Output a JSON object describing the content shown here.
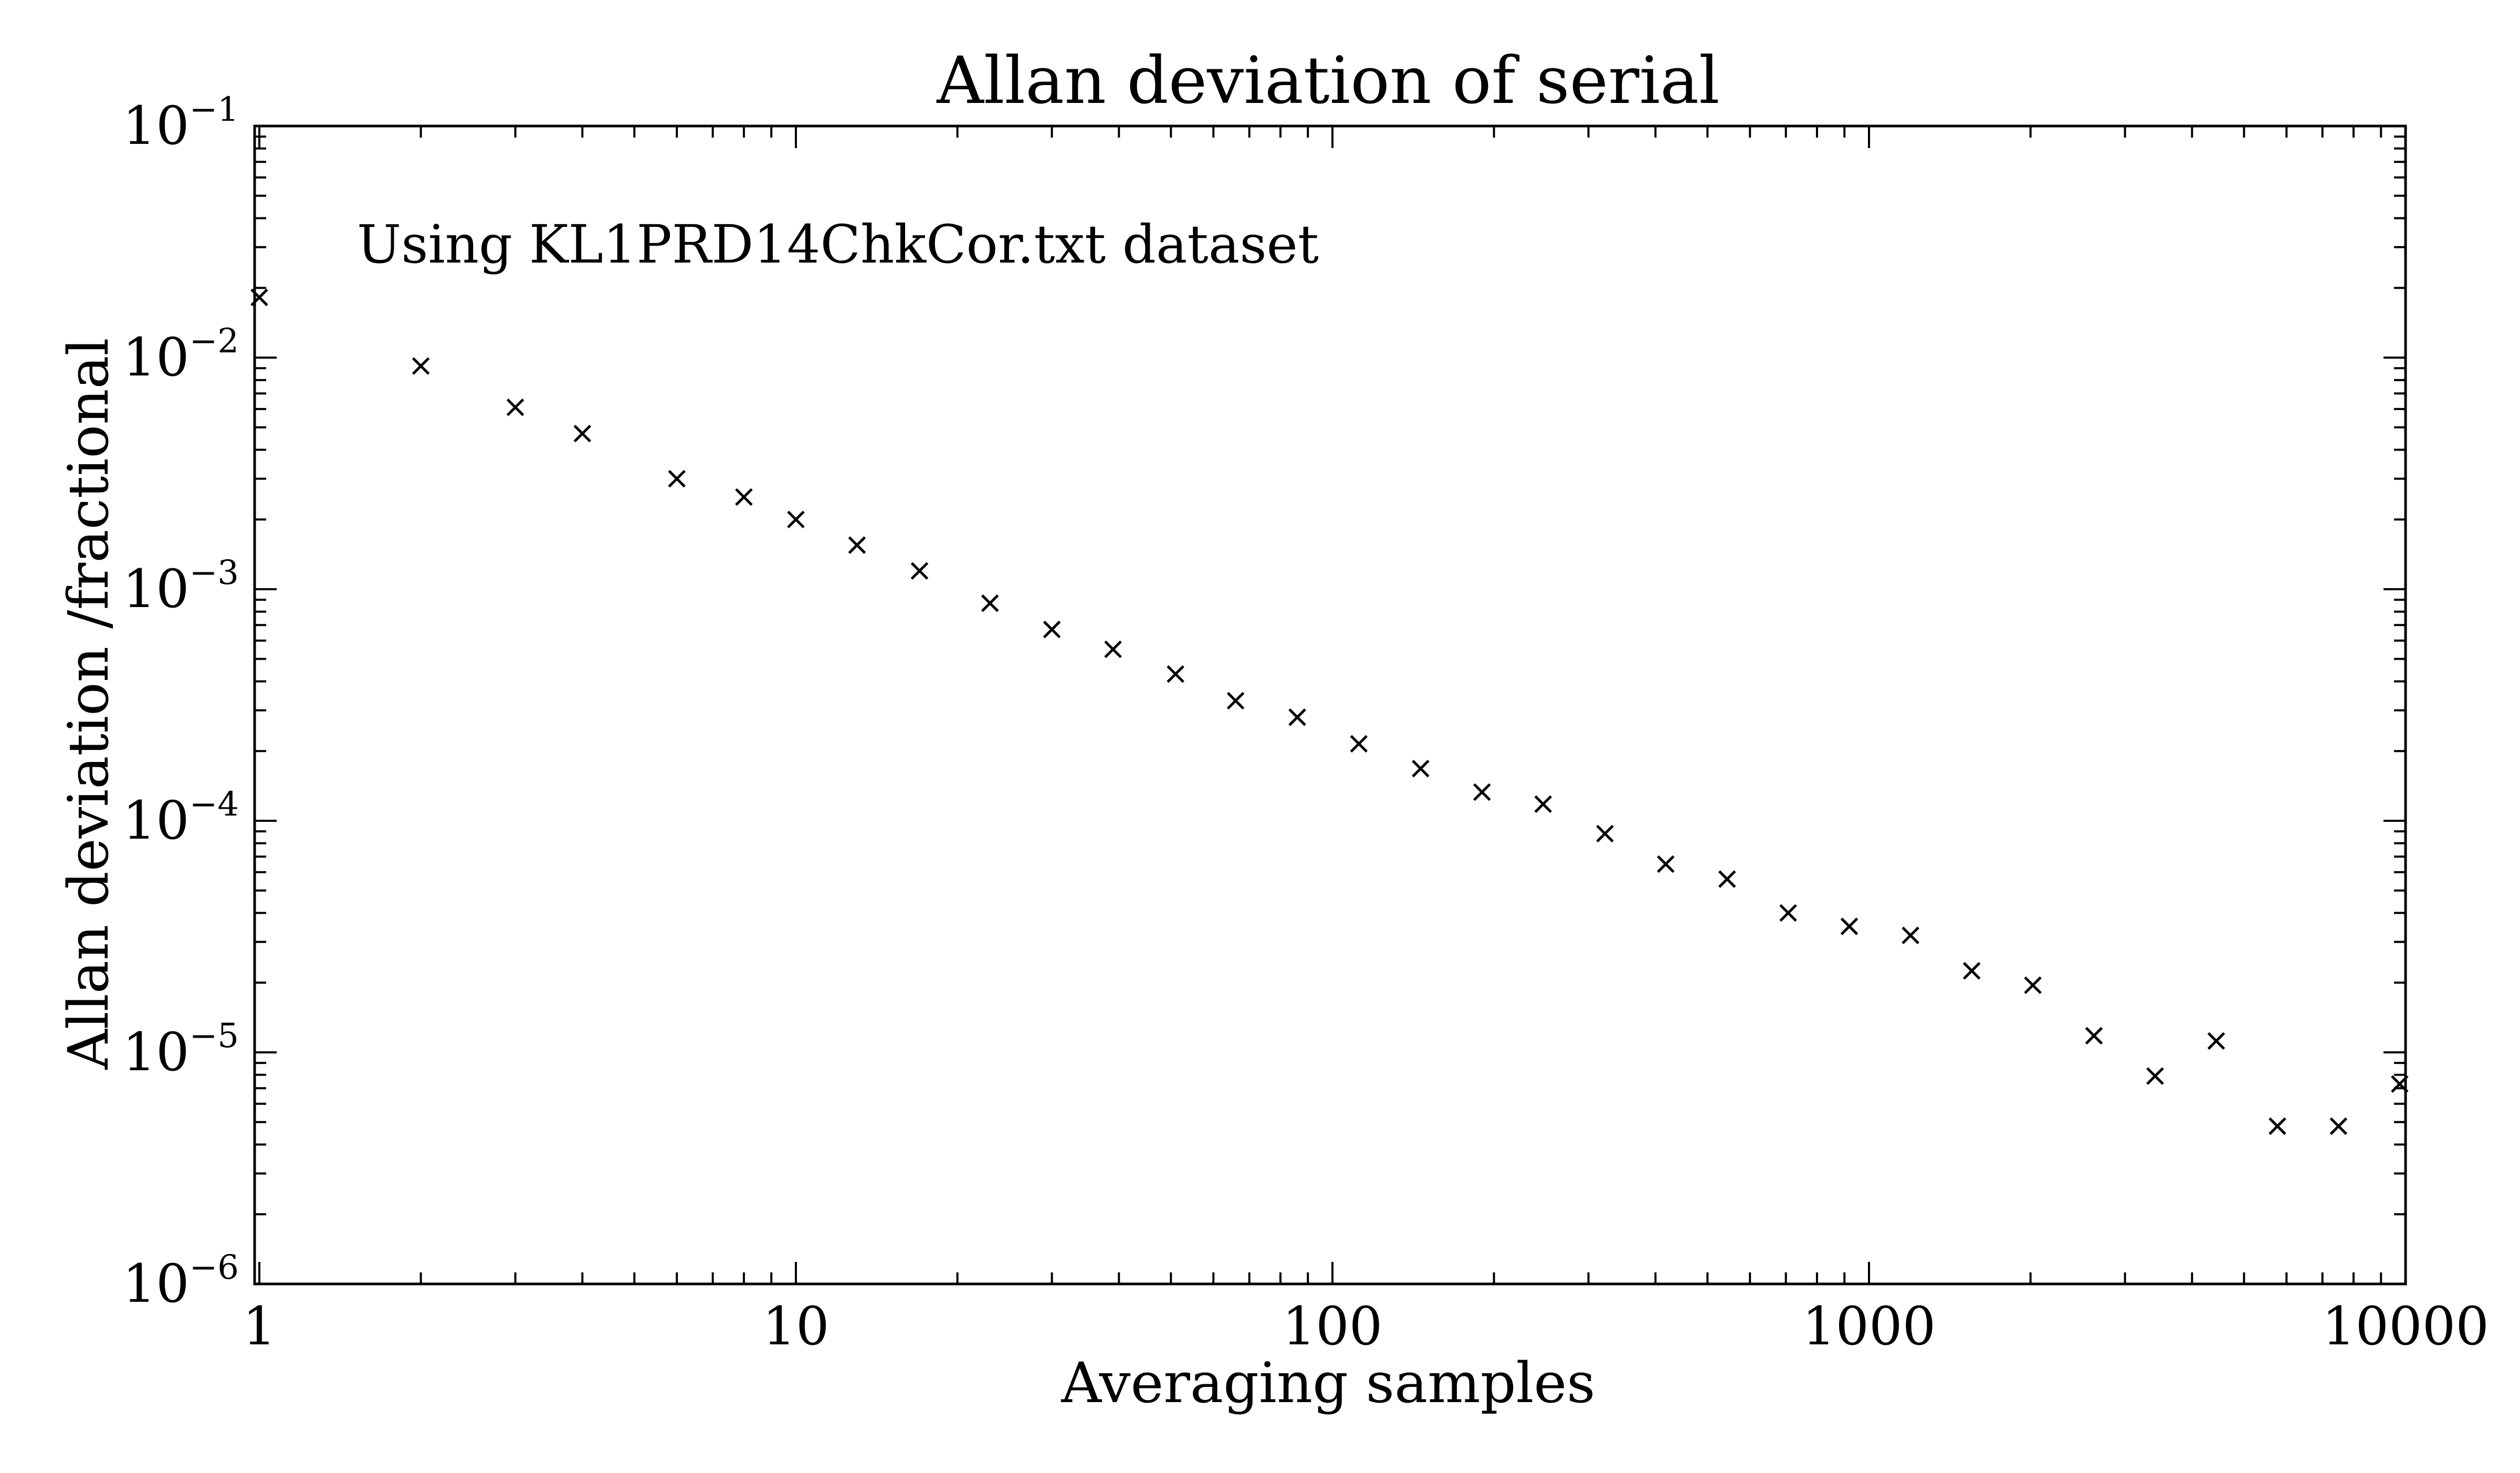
{
  "chart_data": {
    "type": "scatter",
    "title": "Allan deviation of serial",
    "xlabel": "Averaging samples",
    "ylabel": "Allan deviation /fractional",
    "annotation": "Using KL1PRD14ChkCor.txt dataset",
    "xscale": "log",
    "yscale": "log",
    "xlim": [
      0.98,
      10000
    ],
    "ylim": [
      1e-06,
      0.1
    ],
    "grid": false,
    "marker": "x",
    "marker_color": "#000000",
    "x_ticks": [
      {
        "value": 1,
        "label": "1"
      },
      {
        "value": 10,
        "label": "10"
      },
      {
        "value": 100,
        "label": "100"
      },
      {
        "value": 1000,
        "label": "1000"
      },
      {
        "value": 10000,
        "label": "10000"
      }
    ],
    "y_ticks": [
      {
        "value": 0.1,
        "base": "10",
        "exp": "−1"
      },
      {
        "value": 0.01,
        "base": "10",
        "exp": "−2"
      },
      {
        "value": 0.001,
        "base": "10",
        "exp": "−3"
      },
      {
        "value": 0.0001,
        "base": "10",
        "exp": "−4"
      },
      {
        "value": 1e-05,
        "base": "10",
        "exp": "−5"
      },
      {
        "value": 1e-06,
        "base": "10",
        "exp": "−6"
      }
    ],
    "series": [
      {
        "points": [
          {
            "x": 1,
            "y": 0.0182
          },
          {
            "x": 2,
            "y": 0.0092
          },
          {
            "x": 3,
            "y": 0.0061
          },
          {
            "x": 4,
            "y": 0.0047
          },
          {
            "x": 6,
            "y": 0.003
          },
          {
            "x": 8,
            "y": 0.0025
          },
          {
            "x": 10,
            "y": 0.002
          },
          {
            "x": 13,
            "y": 0.00155
          },
          {
            "x": 17,
            "y": 0.0012
          },
          {
            "x": 23,
            "y": 0.00087
          },
          {
            "x": 30,
            "y": 0.00067
          },
          {
            "x": 39,
            "y": 0.00055
          },
          {
            "x": 51,
            "y": 0.00043
          },
          {
            "x": 66,
            "y": 0.00033
          },
          {
            "x": 86,
            "y": 0.00028
          },
          {
            "x": 112,
            "y": 0.000215
          },
          {
            "x": 146,
            "y": 0.000168
          },
          {
            "x": 190,
            "y": 0.000133
          },
          {
            "x": 247,
            "y": 0.000118
          },
          {
            "x": 322,
            "y": 8.8e-05
          },
          {
            "x": 418,
            "y": 6.5e-05
          },
          {
            "x": 544,
            "y": 5.6e-05
          },
          {
            "x": 707,
            "y": 4e-05
          },
          {
            "x": 919,
            "y": 3.5e-05
          },
          {
            "x": 1195,
            "y": 3.2e-05
          },
          {
            "x": 1554,
            "y": 2.25e-05
          },
          {
            "x": 2020,
            "y": 1.95e-05
          },
          {
            "x": 2626,
            "y": 1.18e-05
          },
          {
            "x": 3414,
            "y": 7.9e-06
          },
          {
            "x": 4438,
            "y": 1.12e-05
          },
          {
            "x": 5770,
            "y": 4.8e-06
          },
          {
            "x": 7501,
            "y": 4.8e-06
          },
          {
            "x": 9751,
            "y": 7.3e-06
          }
        ]
      }
    ]
  }
}
